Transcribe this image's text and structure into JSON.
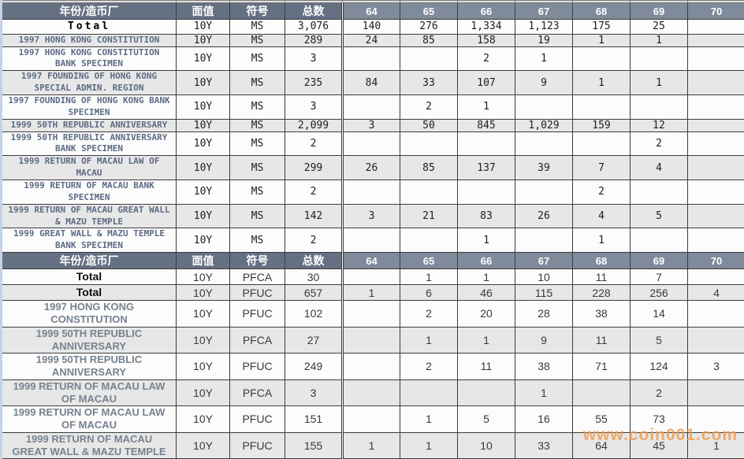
{
  "watermark": "www.coin001.com",
  "colors": {
    "header_bg": "#657083",
    "grade_header_bg": "#7f8a9b",
    "row_shade": "#e7e7e7",
    "section1_name_text": "#5d6b85",
    "section2_name_text": "#77828f",
    "watermark_text": "#f09a4b"
  },
  "table": {
    "columns": [
      "年份/造币厂",
      "面值",
      "符号",
      "总数",
      "64",
      "65",
      "66",
      "67",
      "68",
      "69",
      "70"
    ],
    "sections": [
      {
        "rows": [
          {
            "name": "Total",
            "total_row": true,
            "denom": "10Y",
            "symbol": "MS",
            "total": "3,076",
            "grades": [
              "140",
              "276",
              "1,334",
              "1,123",
              "175",
              "25",
              ""
            ]
          },
          {
            "name": "1997 HONG KONG CONSTITUTION",
            "denom": "10Y",
            "symbol": "MS",
            "total": "289",
            "grades": [
              "24",
              "85",
              "158",
              "19",
              "1",
              "1",
              ""
            ]
          },
          {
            "name": "1997 HONG KONG CONSTITUTION BANK SPECIMEN",
            "denom": "10Y",
            "symbol": "MS",
            "total": "3",
            "grades": [
              "",
              "",
              "2",
              "1",
              "",
              "",
              ""
            ]
          },
          {
            "name": "1997 FOUNDING OF HONG KONG SPECIAL ADMIN. REGION",
            "denom": "10Y",
            "symbol": "MS",
            "total": "235",
            "grades": [
              "84",
              "33",
              "107",
              "9",
              "1",
              "1",
              ""
            ]
          },
          {
            "name": "1997 FOUNDING OF HONG KONG BANK SPECIMEN",
            "denom": "10Y",
            "symbol": "MS",
            "total": "3",
            "grades": [
              "",
              "2",
              "1",
              "",
              "",
              "",
              ""
            ]
          },
          {
            "name": "1999 50TH REPUBLIC ANNIVERSARY",
            "denom": "10Y",
            "symbol": "MS",
            "total": "2,099",
            "grades": [
              "3",
              "50",
              "845",
              "1,029",
              "159",
              "12",
              ""
            ]
          },
          {
            "name": "1999 50TH REPUBLIC ANNIVERSARY BANK SPECIMEN",
            "denom": "10Y",
            "symbol": "MS",
            "total": "2",
            "grades": [
              "",
              "",
              "",
              "",
              "",
              "2",
              ""
            ]
          },
          {
            "name": "1999 RETURN OF MACAU LAW OF MACAU",
            "denom": "10Y",
            "symbol": "MS",
            "total": "299",
            "grades": [
              "26",
              "85",
              "137",
              "39",
              "7",
              "4",
              ""
            ]
          },
          {
            "name": "1999 RETURN OF MACAU BANK SPECIMEN",
            "denom": "10Y",
            "symbol": "MS",
            "total": "2",
            "grades": [
              "",
              "",
              "",
              "",
              "2",
              "",
              ""
            ]
          },
          {
            "name": "1999 RETURN OF MACAU GREAT WALL & MAZU TEMPLE",
            "denom": "10Y",
            "symbol": "MS",
            "total": "142",
            "grades": [
              "3",
              "21",
              "83",
              "26",
              "4",
              "5",
              ""
            ]
          },
          {
            "name": "1999 GREAT WALL & MAZU TEMPLE BANK SPECIMEN",
            "denom": "10Y",
            "symbol": "MS",
            "total": "2",
            "grades": [
              "",
              "",
              "1",
              "",
              "1",
              "",
              ""
            ]
          }
        ]
      },
      {
        "rows": [
          {
            "name": "Total",
            "total_row": true,
            "denom": "10Y",
            "symbol": "PFCA",
            "total": "30",
            "grades": [
              "",
              "1",
              "1",
              "10",
              "11",
              "7",
              ""
            ]
          },
          {
            "name": "Total",
            "total_row": true,
            "denom": "10Y",
            "symbol": "PFUC",
            "total": "657",
            "grades": [
              "1",
              "6",
              "46",
              "115",
              "228",
              "256",
              "4"
            ]
          },
          {
            "name": "1997 HONG KONG CONSTITUTION",
            "denom": "10Y",
            "symbol": "PFUC",
            "total": "102",
            "grades": [
              "",
              "2",
              "20",
              "28",
              "38",
              "14",
              ""
            ]
          },
          {
            "name": "1999 50TH REPUBLIC ANNIVERSARY",
            "denom": "10Y",
            "symbol": "PFCA",
            "total": "27",
            "grades": [
              "",
              "1",
              "1",
              "9",
              "11",
              "5",
              ""
            ]
          },
          {
            "name": "1999 50TH REPUBLIC ANNIVERSARY",
            "denom": "10Y",
            "symbol": "PFUC",
            "total": "249",
            "grades": [
              "",
              "2",
              "11",
              "38",
              "71",
              "124",
              "3"
            ]
          },
          {
            "name": "1999 RETURN OF MACAU LAW OF MACAU",
            "denom": "10Y",
            "symbol": "PFCA",
            "total": "3",
            "grades": [
              "",
              "",
              "",
              "1",
              "",
              "2",
              ""
            ]
          },
          {
            "name": "1999 RETURN OF MACAU LAW OF MACAU",
            "denom": "10Y",
            "symbol": "PFUC",
            "total": "151",
            "grades": [
              "",
              "1",
              "5",
              "16",
              "55",
              "73",
              ""
            ]
          },
          {
            "name": "1999 RETURN OF MACAU GREAT WALL & MAZU TEMPLE",
            "denom": "10Y",
            "symbol": "PFUC",
            "total": "155",
            "grades": [
              "1",
              "1",
              "10",
              "33",
              "64",
              "45",
              "1"
            ]
          }
        ]
      }
    ]
  }
}
